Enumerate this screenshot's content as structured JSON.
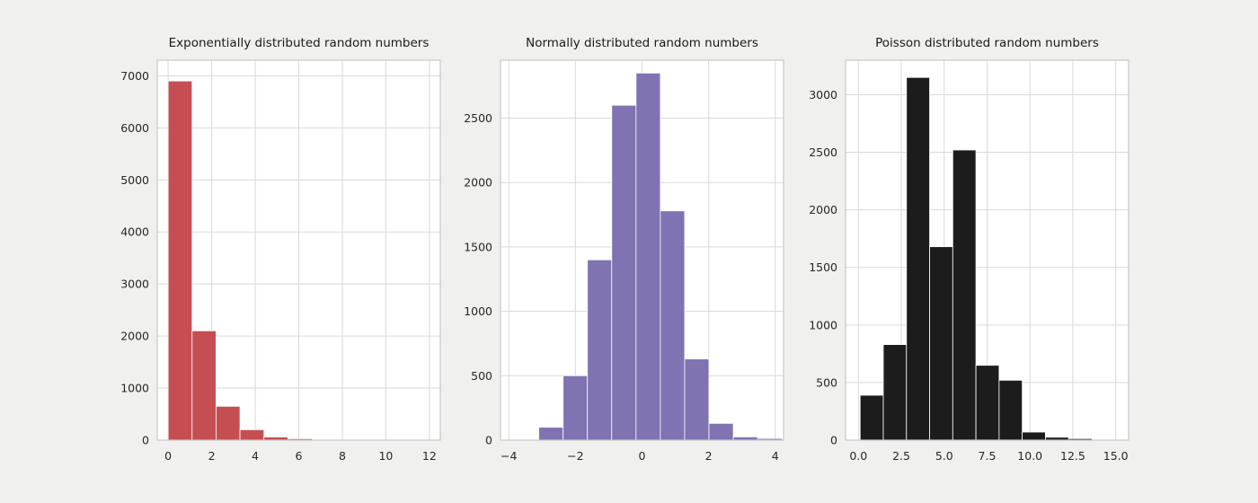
{
  "figure": {
    "background": "#f0f0ef",
    "plot_background": "#ffffff",
    "grid_color": "#d9d9d9",
    "spine_color": "#c7c7c7",
    "tick_color": "#262626"
  },
  "chart_data": [
    {
      "type": "bar",
      "title": "Exponentially distributed random numbers",
      "color": "#c44e52",
      "xlim": [
        -0.5,
        12.5
      ],
      "ylim": [
        0,
        7300
      ],
      "xtick_values": [
        0,
        2,
        4,
        6,
        8,
        10,
        12
      ],
      "xtick_labels": [
        "0",
        "2",
        "4",
        "6",
        "8",
        "10",
        "12"
      ],
      "ytick_values": [
        0,
        1000,
        2000,
        3000,
        4000,
        5000,
        6000,
        7000
      ],
      "ytick_labels": [
        "0",
        "1000",
        "2000",
        "3000",
        "4000",
        "5000",
        "6000",
        "7000"
      ],
      "bins": {
        "start": 0.0,
        "width": 1.1,
        "counts": [
          6900,
          2100,
          650,
          200,
          60,
          20,
          8,
          3,
          1,
          1
        ]
      },
      "grid": true,
      "legend": null
    },
    {
      "type": "bar",
      "title": "Normally distributed random numbers",
      "color": "#8172b2",
      "xlim": [
        -4.25,
        4.25
      ],
      "ylim": [
        0,
        2950
      ],
      "xtick_values": [
        -4,
        -2,
        0,
        2,
        4
      ],
      "xtick_labels": [
        "−4",
        "−2",
        "0",
        "2",
        "4"
      ],
      "ytick_values": [
        0,
        500,
        1000,
        1500,
        2000,
        2500
      ],
      "ytick_labels": [
        "0",
        "500",
        "1000",
        "1500",
        "2000",
        "2500"
      ],
      "bins": {
        "start": -3.1,
        "width": 0.73,
        "counts": [
          100,
          500,
          1400,
          2600,
          2850,
          1780,
          630,
          130,
          25,
          10
        ]
      },
      "grid": true,
      "legend": null
    },
    {
      "type": "bar",
      "title": "Poisson distributed random numbers",
      "color": "#1c1c1c",
      "xlim": [
        -0.75,
        15.75
      ],
      "ylim": [
        0,
        3300
      ],
      "xtick_values": [
        0,
        2.5,
        5,
        7.5,
        10,
        12.5,
        15
      ],
      "xtick_labels": [
        "0.0",
        "2.5",
        "5.0",
        "7.5",
        "10.0",
        "12.5",
        "15.0"
      ],
      "ytick_values": [
        0,
        500,
        1000,
        1500,
        2000,
        2500,
        3000
      ],
      "ytick_labels": [
        "0",
        "500",
        "1000",
        "1500",
        "2000",
        "2500",
        "3000"
      ],
      "bins": {
        "start": 0.1,
        "width": 1.35,
        "counts": [
          390,
          830,
          3150,
          1680,
          2520,
          650,
          520,
          70,
          25,
          10
        ]
      },
      "grid": true,
      "legend": null
    }
  ]
}
